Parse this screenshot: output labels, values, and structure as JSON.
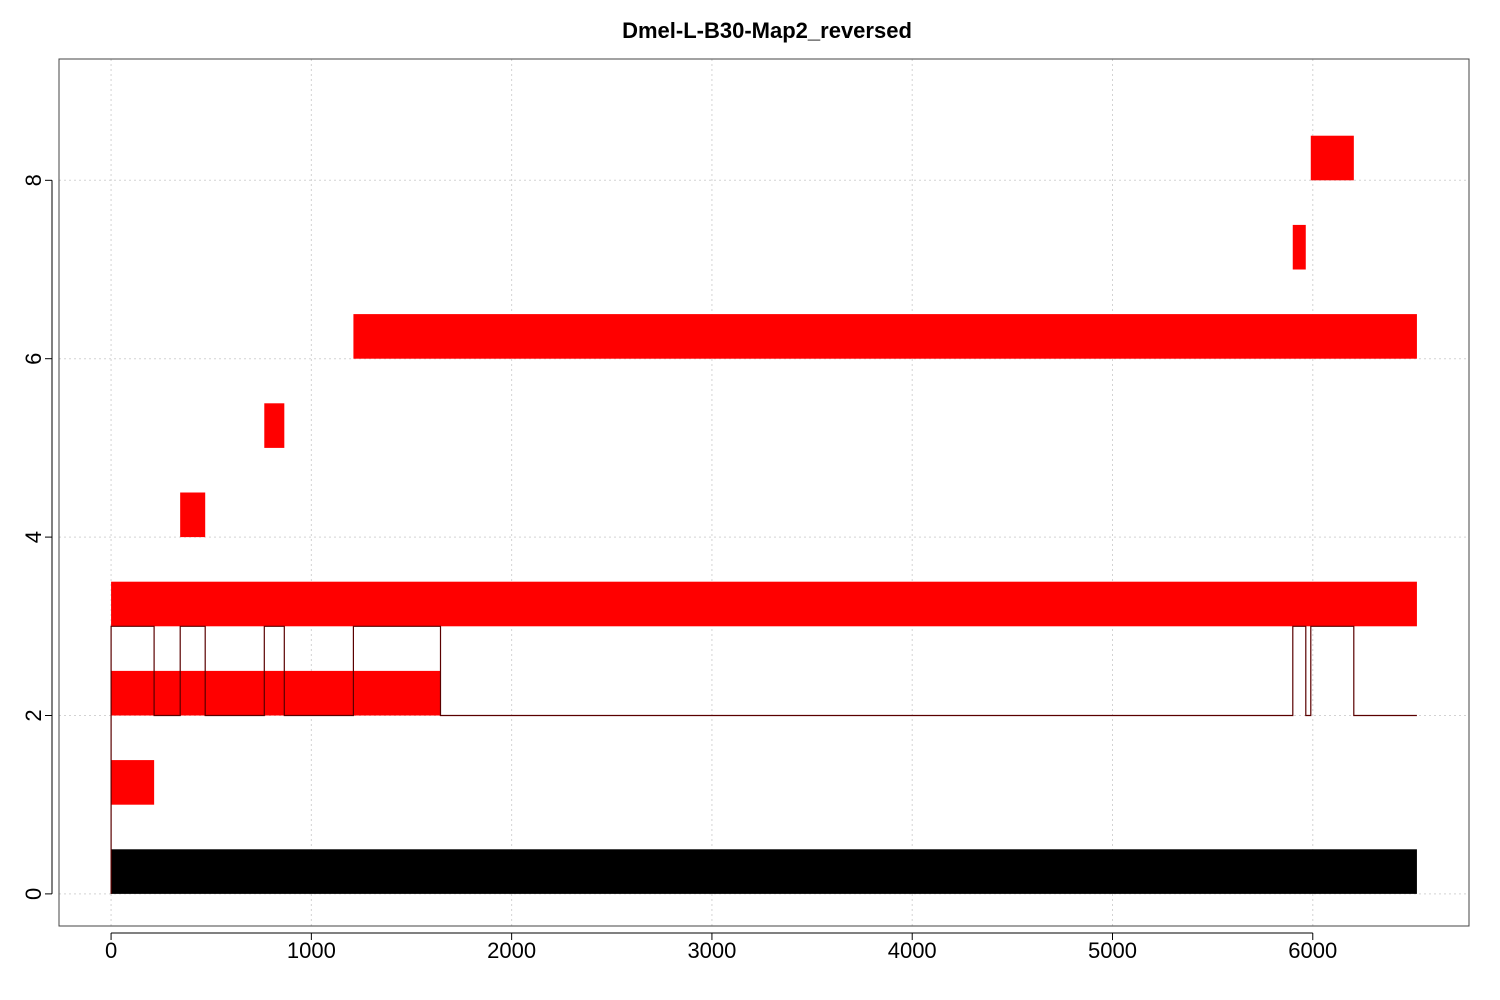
{
  "chart_data": {
    "type": "bar",
    "title": "Dmel-L-B30-Map2_reversed",
    "xlabel": "",
    "ylabel": "",
    "xlim": [
      -260,
      6780
    ],
    "ylim": [
      -0.36,
      9.36
    ],
    "x_ticks": [
      0,
      1000,
      2000,
      3000,
      4000,
      5000,
      6000
    ],
    "y_ticks": [
      0,
      2,
      4,
      6,
      8
    ],
    "grid": true,
    "colors": {
      "segment": "#ff0000",
      "baseline": "#000000",
      "coverage_line": "#5a0000",
      "box": "#444444",
      "grid": "#d3d3d3"
    },
    "baseline_bar": {
      "x_start": 0,
      "x_end": 6520,
      "y_bottom": 0,
      "y_top": 0.5
    },
    "segments": [
      {
        "x_start": 0,
        "x_end": 215,
        "y_bottom": 1,
        "y_top": 1.5
      },
      {
        "x_start": 0,
        "x_end": 1645,
        "y_bottom": 2,
        "y_top": 2.5
      },
      {
        "x_start": 0,
        "x_end": 6520,
        "y_bottom": 3,
        "y_top": 3.5
      },
      {
        "x_start": 345,
        "x_end": 470,
        "y_bottom": 4,
        "y_top": 4.5
      },
      {
        "x_start": 765,
        "x_end": 865,
        "y_bottom": 5,
        "y_top": 5.5
      },
      {
        "x_start": 1210,
        "x_end": 6520,
        "y_bottom": 6,
        "y_top": 6.5
      },
      {
        "x_start": 5900,
        "x_end": 5965,
        "y_bottom": 7,
        "y_top": 7.5
      },
      {
        "x_start": 5990,
        "x_end": 6205,
        "y_bottom": 8,
        "y_top": 8.5
      }
    ],
    "coverage_line": [
      [
        0,
        0
      ],
      [
        0,
        3
      ],
      [
        215,
        3
      ],
      [
        215,
        2
      ],
      [
        345,
        2
      ],
      [
        345,
        3
      ],
      [
        470,
        3
      ],
      [
        470,
        2
      ],
      [
        765,
        2
      ],
      [
        765,
        3
      ],
      [
        865,
        3
      ],
      [
        865,
        2
      ],
      [
        1210,
        2
      ],
      [
        1210,
        3
      ],
      [
        1645,
        3
      ],
      [
        1645,
        2
      ],
      [
        5900,
        2
      ],
      [
        5900,
        3
      ],
      [
        5965,
        3
      ],
      [
        5965,
        2
      ],
      [
        5990,
        2
      ],
      [
        5990,
        3
      ],
      [
        6205,
        3
      ],
      [
        6205,
        2
      ],
      [
        6520,
        2
      ]
    ]
  }
}
